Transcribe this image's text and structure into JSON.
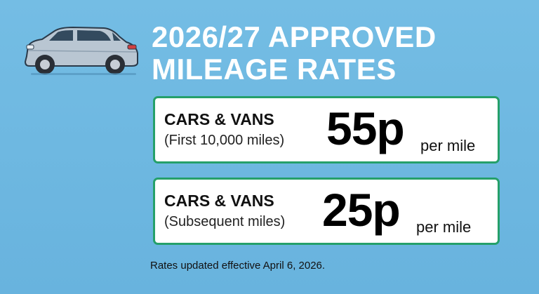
{
  "header": {
    "title_lines": [
      "2026/27 APPROVED",
      "MILEAGE RATES"
    ]
  },
  "rates": [
    {
      "category": "CARS & VANS",
      "qualifier": "(First 10,000 miles)",
      "rate": "55p",
      "unit": "per mile"
    },
    {
      "category": "CARS & VANS",
      "qualifier": "(Subsequent miles)",
      "rate": "25p",
      "unit": "per mile"
    }
  ],
  "footer": {
    "note": "Rates updated effective April 6, 2026."
  }
}
